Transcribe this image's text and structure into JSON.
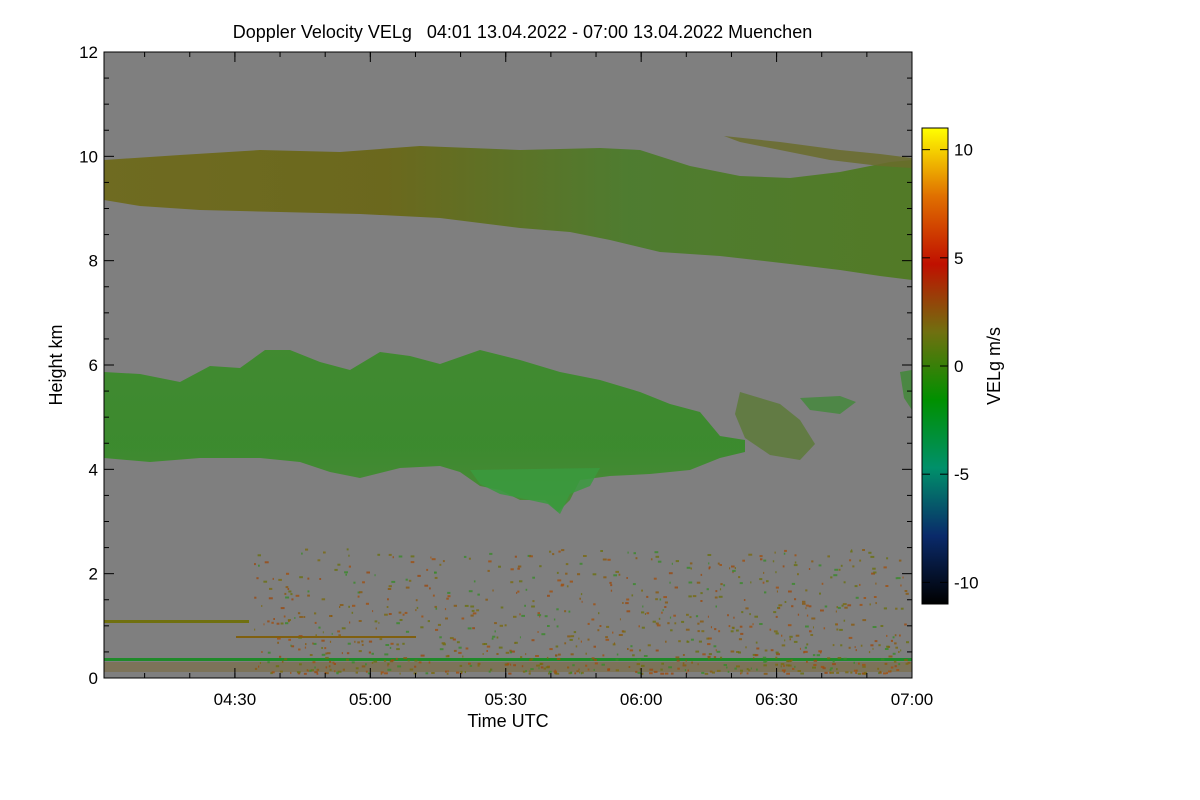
{
  "chart_data": {
    "type": "heatmap",
    "title": "Doppler Velocity VELg   04:01 13.04.2022 - 07:00 13.04.2022 Muenchen",
    "xlabel": "Time UTC",
    "ylabel": "Height km",
    "xlim": [
      "04:01",
      "07:00"
    ],
    "ylim": [
      0,
      12
    ],
    "x_ticks": [
      "04:30",
      "05:00",
      "05:30",
      "06:00",
      "06:30",
      "07:00"
    ],
    "y_ticks": [
      0,
      2,
      4,
      6,
      8,
      10,
      12
    ],
    "colorbar": {
      "label": "VELg m/s",
      "range": [
        -11,
        11
      ],
      "ticks": [
        10,
        5,
        0,
        -5,
        -10
      ],
      "colormap": [
        "#000000",
        "#0a2a6a",
        "#00906a",
        "#009000",
        "#707010",
        "#c01000",
        "#e07000",
        "#ffff00"
      ]
    },
    "background_color": "#7f7f7f",
    "features": [
      {
        "name": "upper cloud layer",
        "time": [
          "04:01",
          "07:00"
        ],
        "height_km": [
          8.0,
          10.2
        ],
        "velocity_ms": [
          -1,
          1
        ]
      },
      {
        "name": "mid-level cloud layer",
        "time": [
          "04:01",
          "06:40"
        ],
        "height_km": [
          3.3,
          6.3
        ],
        "velocity_ms": [
          -3,
          0
        ]
      },
      {
        "name": "boundary layer echoes",
        "time": [
          "04:01",
          "07:00"
        ],
        "height_km": [
          0,
          2.5
        ],
        "velocity_ms": [
          0,
          3
        ]
      }
    ]
  }
}
